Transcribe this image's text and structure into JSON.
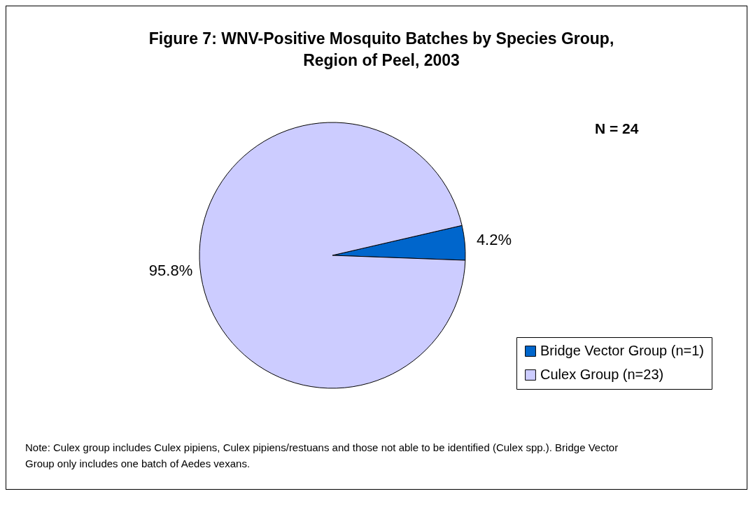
{
  "chart_data": {
    "type": "pie",
    "title": "Figure 7: WNV-Positive Mosquito Batches by Species Group, Region of Peel, 2003",
    "categories": [
      "Bridge Vector Group (n=1)",
      "Culex Group (n=23)"
    ],
    "values": [
      4.2,
      95.8
    ],
    "colors": [
      "#0066cc",
      "#ccccff"
    ],
    "value_labels": [
      "4.2%",
      "95.8%"
    ],
    "legend": "bottom right",
    "annotations": [
      "N = 24",
      "Note:  Culex group includes Culex pipiens, Culex pipiens/restuans and those not able to be identified (Culex spp.). Bridge Vector Group only includes one batch of Aedes vexans."
    ]
  }
}
